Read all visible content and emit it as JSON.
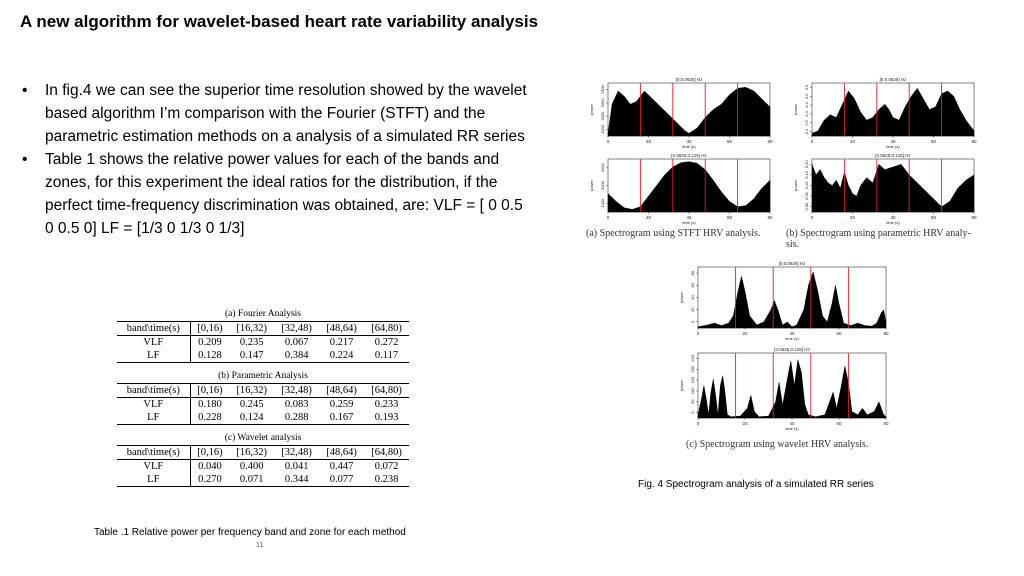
{
  "slide": {
    "title": "A new algorithm for wavelet-based heart rate variability analysis",
    "bullets": [
      "In fig.4 we can see the superior time resolution showed by the wavelet based algorithm I’m comparison with the Fourier (STFT) and the parametric estimation methods on a analysis of a simulated RR series",
      "Table 1 shows the relative power values for each of the bands and zones, for this experiment the ideal ratios for the distribution, if the perfect time-frequency discrimination was obtained, are: VLF = [ 0 0.5 0 0.5 0] LF = [1/3 0 1/3 0 1/3]"
    ],
    "bullet_symbol": "•",
    "page_number": "11"
  },
  "tables": [
    {
      "caption": "(a) Fourier Analysis",
      "header": [
        "band\\time(s)",
        "[0,16)",
        "[16,32)",
        "[32,48)",
        "[48,64)",
        "[64,80)"
      ],
      "rows": [
        [
          "VLF",
          "0.209",
          "0.235",
          "0.067",
          "0.217",
          "0.272"
        ],
        [
          "LF",
          "0.128",
          "0.147",
          "0.384",
          "0.224",
          "0.117"
        ]
      ]
    },
    {
      "caption": "(b) Parametric Analysis",
      "header": [
        "band\\time(s)",
        "[0,16)",
        "[16,32)",
        "[32,48)",
        "[48,64)",
        "[64,80)"
      ],
      "rows": [
        [
          "VLF",
          "0.180",
          "0.245",
          "0.083",
          "0.259",
          "0.233"
        ],
        [
          "LF",
          "0.228",
          "0.124",
          "0.288",
          "0.167",
          "0.193"
        ]
      ]
    },
    {
      "caption": "(c) Wavelet analysis",
      "header": [
        "band\\time(s)",
        "[0,16)",
        "[16,32)",
        "[32,48)",
        "[48,64)",
        "[64,80)"
      ],
      "rows": [
        [
          "VLF",
          "0.040",
          "0.400",
          "0.041",
          "0.447",
          "0.072"
        ],
        [
          "LF",
          "0.270",
          "0.071",
          "0.344",
          "0.077",
          "0.238"
        ]
      ]
    }
  ],
  "table_caption": "Table .1  Relative power per frequency band and zone for each method",
  "figure": {
    "caption": "Fig. 4 Spectrogram analysis of a simulated RR series",
    "sub_captions": {
      "a": "(a)  Spectrogram using STFT HRV analysis.",
      "b": "(b)  Spectrogram using parametric HRV analy-",
      "b2": "sis.",
      "c": "(c)  Spectrogram using wavelet HRV analysis."
    },
    "panels": [
      {
        "id": "a1",
        "band": "[0,0.0625] Hz",
        "xlabel": "time (s)",
        "ylabel": "power",
        "x_ticks": [
          "0",
          "20",
          "40",
          "60",
          "80"
        ],
        "y_ticks": [
          "1000",
          "3000",
          "5000",
          "7000"
        ],
        "x_range": [
          0,
          80
        ],
        "y_range": [
          0,
          1
        ],
        "red_lines": [
          16,
          32,
          48,
          64
        ],
        "curve": [
          [
            0,
            0.05
          ],
          [
            2,
            0.6
          ],
          [
            5,
            0.85
          ],
          [
            8,
            0.75
          ],
          [
            11,
            0.6
          ],
          [
            14,
            0.65
          ],
          [
            18,
            0.85
          ],
          [
            22,
            0.7
          ],
          [
            26,
            0.55
          ],
          [
            30,
            0.4
          ],
          [
            34,
            0.25
          ],
          [
            38,
            0.1
          ],
          [
            40,
            0.05
          ],
          [
            44,
            0.15
          ],
          [
            48,
            0.35
          ],
          [
            52,
            0.5
          ],
          [
            56,
            0.6
          ],
          [
            60,
            0.78
          ],
          [
            64,
            0.9
          ],
          [
            68,
            0.92
          ],
          [
            72,
            0.85
          ],
          [
            76,
            0.7
          ],
          [
            80,
            0.55
          ]
        ]
      },
      {
        "id": "b1",
        "band": "[0,0.0625] Hz",
        "xlabel": "time (s)",
        "ylabel": "power",
        "x_ticks": [
          "0",
          "20",
          "40",
          "60",
          "80"
        ],
        "y_ticks": [
          "0.1",
          "0.2",
          "0.3",
          "0.4",
          "0.5",
          "0.6"
        ],
        "x_range": [
          0,
          80
        ],
        "y_range": [
          0,
          1
        ],
        "red_lines": [
          16,
          32,
          48,
          64
        ],
        "curve": [
          [
            0,
            0.05
          ],
          [
            3,
            0.1
          ],
          [
            6,
            0.3
          ],
          [
            9,
            0.4
          ],
          [
            12,
            0.35
          ],
          [
            15,
            0.6
          ],
          [
            18,
            0.85
          ],
          [
            21,
            0.7
          ],
          [
            24,
            0.45
          ],
          [
            27,
            0.3
          ],
          [
            30,
            0.35
          ],
          [
            33,
            0.5
          ],
          [
            36,
            0.6
          ],
          [
            38,
            0.5
          ],
          [
            40,
            0.35
          ],
          [
            43,
            0.3
          ],
          [
            46,
            0.55
          ],
          [
            49,
            0.75
          ],
          [
            52,
            0.9
          ],
          [
            55,
            0.7
          ],
          [
            58,
            0.5
          ],
          [
            61,
            0.55
          ],
          [
            64,
            0.8
          ],
          [
            67,
            0.85
          ],
          [
            70,
            0.75
          ],
          [
            73,
            0.5
          ],
          [
            76,
            0.3
          ],
          [
            80,
            0.1
          ]
        ]
      },
      {
        "id": "a2",
        "band": "[0.0625,0.125] Hz",
        "xlabel": "time (s)",
        "ylabel": "power",
        "x_ticks": [
          "0",
          "20",
          "40",
          "60",
          "80"
        ],
        "y_ticks": [
          "1000",
          "3000",
          "5000"
        ],
        "x_range": [
          0,
          80
        ],
        "y_range": [
          0,
          1
        ],
        "red_lines": [
          16,
          32,
          48,
          64
        ],
        "curve": [
          [
            0,
            0.35
          ],
          [
            4,
            0.2
          ],
          [
            8,
            0.08
          ],
          [
            12,
            0.05
          ],
          [
            16,
            0.1
          ],
          [
            20,
            0.3
          ],
          [
            24,
            0.5
          ],
          [
            28,
            0.7
          ],
          [
            32,
            0.85
          ],
          [
            36,
            0.93
          ],
          [
            40,
            0.95
          ],
          [
            44,
            0.92
          ],
          [
            48,
            0.8
          ],
          [
            52,
            0.6
          ],
          [
            56,
            0.38
          ],
          [
            60,
            0.2
          ],
          [
            64,
            0.1
          ],
          [
            68,
            0.12
          ],
          [
            72,
            0.25
          ],
          [
            76,
            0.45
          ],
          [
            80,
            0.6
          ]
        ]
      },
      {
        "id": "b2",
        "band": "[0.0625,0.125] Hz",
        "xlabel": "time (s)",
        "ylabel": "power",
        "x_ticks": [
          "0",
          "20",
          "40",
          "60",
          "80"
        ],
        "y_ticks": [
          "0.00",
          "0.05",
          "0.10",
          "0.15",
          "0.20"
        ],
        "x_range": [
          0,
          80
        ],
        "y_range": [
          0,
          1
        ],
        "red_lines": [
          16,
          32,
          48,
          64
        ],
        "curve": [
          [
            0,
            0.9
          ],
          [
            2,
            0.7
          ],
          [
            4,
            0.8
          ],
          [
            6,
            0.65
          ],
          [
            8,
            0.55
          ],
          [
            10,
            0.5
          ],
          [
            12,
            0.6
          ],
          [
            14,
            0.45
          ],
          [
            16,
            0.75
          ],
          [
            18,
            0.5
          ],
          [
            20,
            0.35
          ],
          [
            22,
            0.3
          ],
          [
            24,
            0.5
          ],
          [
            27,
            0.65
          ],
          [
            30,
            0.55
          ],
          [
            33,
            0.9
          ],
          [
            36,
            0.8
          ],
          [
            40,
            0.85
          ],
          [
            44,
            0.9
          ],
          [
            48,
            0.7
          ],
          [
            52,
            0.55
          ],
          [
            56,
            0.4
          ],
          [
            60,
            0.25
          ],
          [
            64,
            0.1
          ],
          [
            68,
            0.2
          ],
          [
            72,
            0.45
          ],
          [
            76,
            0.6
          ],
          [
            80,
            0.7
          ]
        ]
      },
      {
        "id": "c1",
        "band": "[0,0.0625] Hz",
        "xlabel": "time (s)",
        "ylabel": "power",
        "x_ticks": [
          "0",
          "20",
          "40",
          "60",
          "80"
        ],
        "y_ticks": [
          "0",
          "20",
          "40",
          "60",
          "80"
        ],
        "x_range": [
          0,
          80
        ],
        "y_range": [
          0,
          1
        ],
        "red_lines": [
          16,
          32,
          48,
          64
        ],
        "curve": [
          [
            0,
            0.02
          ],
          [
            4,
            0.05
          ],
          [
            7,
            0.08
          ],
          [
            10,
            0.04
          ],
          [
            13,
            0.08
          ],
          [
            15,
            0.2
          ],
          [
            17,
            0.6
          ],
          [
            18.5,
            0.85
          ],
          [
            20,
            0.6
          ],
          [
            22,
            0.2
          ],
          [
            25,
            0.05
          ],
          [
            28,
            0.1
          ],
          [
            31,
            0.3
          ],
          [
            32.5,
            0.45
          ],
          [
            34,
            0.3
          ],
          [
            36,
            0.05
          ],
          [
            38,
            0.1
          ],
          [
            40,
            0.02
          ],
          [
            42,
            0.05
          ],
          [
            45,
            0.3
          ],
          [
            47,
            0.7
          ],
          [
            49,
            0.92
          ],
          [
            51,
            0.6
          ],
          [
            53,
            0.2
          ],
          [
            55,
            0.1
          ],
          [
            57,
            0.4
          ],
          [
            58.5,
            0.7
          ],
          [
            60,
            0.4
          ],
          [
            62,
            0.08
          ],
          [
            65,
            0.04
          ],
          [
            68,
            0.08
          ],
          [
            71,
            0.04
          ],
          [
            74,
            0.03
          ],
          [
            76,
            0.08
          ],
          [
            78,
            0.25
          ],
          [
            79,
            0.3
          ],
          [
            80,
            0.1
          ]
        ]
      },
      {
        "id": "c2",
        "band": "[0.0625,0.125] Hz",
        "xlabel": "time (s)",
        "ylabel": "power",
        "x_ticks": [
          "0",
          "20",
          "40",
          "60",
          "80"
        ],
        "y_ticks": [
          "0",
          "50",
          "100",
          "150",
          "200",
          "250"
        ],
        "x_range": [
          0,
          80
        ],
        "y_range": [
          0,
          1
        ],
        "red_lines": [
          16,
          32,
          48,
          64
        ],
        "curve": [
          [
            0,
            0.05
          ],
          [
            1.5,
            0.3
          ],
          [
            2.5,
            0.5
          ],
          [
            3.5,
            0.3
          ],
          [
            4.5,
            0.05
          ],
          [
            5.5,
            0.4
          ],
          [
            6.5,
            0.6
          ],
          [
            7.5,
            0.35
          ],
          [
            8.5,
            0.05
          ],
          [
            9.5,
            0.5
          ],
          [
            10.5,
            0.65
          ],
          [
            11.5,
            0.4
          ],
          [
            12.5,
            0.05
          ],
          [
            14,
            0.02
          ],
          [
            18,
            0.03
          ],
          [
            21,
            0.15
          ],
          [
            22.5,
            0.35
          ],
          [
            24,
            0.1
          ],
          [
            26,
            0.02
          ],
          [
            30,
            0.03
          ],
          [
            33,
            0.25
          ],
          [
            34.5,
            0.55
          ],
          [
            36,
            0.2
          ],
          [
            38,
            0.6
          ],
          [
            39.5,
            0.88
          ],
          [
            41,
            0.5
          ],
          [
            42.5,
            0.9
          ],
          [
            44,
            0.7
          ],
          [
            45.5,
            0.2
          ],
          [
            47,
            0.05
          ],
          [
            50,
            0.02
          ],
          [
            54,
            0.05
          ],
          [
            56,
            0.25
          ],
          [
            57.5,
            0.4
          ],
          [
            59,
            0.15
          ],
          [
            61,
            0.5
          ],
          [
            62.5,
            0.8
          ],
          [
            64,
            0.55
          ],
          [
            65.5,
            0.1
          ],
          [
            68,
            0.05
          ],
          [
            70,
            0.15
          ],
          [
            72,
            0.05
          ],
          [
            75,
            0.1
          ],
          [
            77,
            0.25
          ],
          [
            79,
            0.05
          ],
          [
            80,
            0.02
          ]
        ]
      }
    ]
  }
}
